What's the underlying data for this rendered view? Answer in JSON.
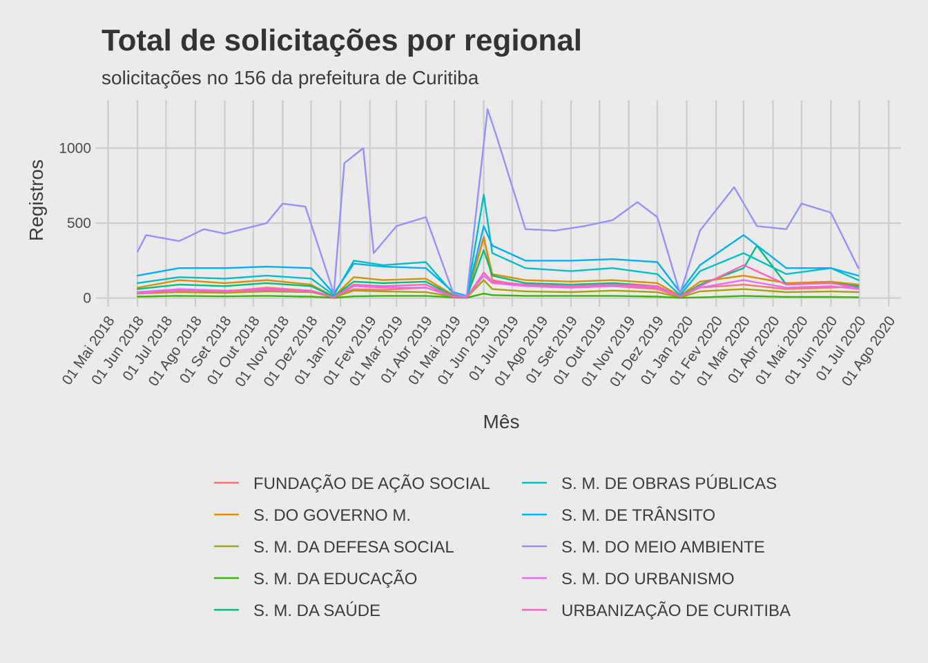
{
  "chart_data": {
    "type": "line",
    "title": "Total de solicitações por regional",
    "subtitle": "solicitações no 156 da prefeitura de Curitiba",
    "xlabel": "Mês",
    "ylabel": "Registros",
    "ylim": [
      -20,
      1320
    ],
    "y_ticks": [
      0,
      500,
      1000
    ],
    "xlim": [
      "2018-04-24",
      "2020-08-14"
    ],
    "x_ticks": [
      {
        "date": "2018-05-01",
        "label": "01 Mai 2018"
      },
      {
        "date": "2018-06-01",
        "label": "01 Jun 2018"
      },
      {
        "date": "2018-07-01",
        "label": "01 Jul 2018"
      },
      {
        "date": "2018-08-01",
        "label": "01 Ago 2018"
      },
      {
        "date": "2018-09-01",
        "label": "01 Set 2018"
      },
      {
        "date": "2018-10-01",
        "label": "01 Out 2018"
      },
      {
        "date": "2018-11-01",
        "label": "01 Nov 2018"
      },
      {
        "date": "2018-12-01",
        "label": "01 Dez 2018"
      },
      {
        "date": "2019-01-01",
        "label": "01 Jan 2019"
      },
      {
        "date": "2019-02-01",
        "label": "01 Fev 2019"
      },
      {
        "date": "2019-03-01",
        "label": "01 Mar 2019"
      },
      {
        "date": "2019-04-01",
        "label": "01 Abr 2019"
      },
      {
        "date": "2019-05-01",
        "label": "01 Mai 2019"
      },
      {
        "date": "2019-06-01",
        "label": "01 Jun 2019"
      },
      {
        "date": "2019-07-01",
        "label": "01 Jul 2019"
      },
      {
        "date": "2019-08-01",
        "label": "01 Ago 2019"
      },
      {
        "date": "2019-09-01",
        "label": "01 Set 2019"
      },
      {
        "date": "2019-10-01",
        "label": "01 Out 2019"
      },
      {
        "date": "2019-11-01",
        "label": "01 Nov 2019"
      },
      {
        "date": "2019-12-01",
        "label": "01 Dez 2019"
      },
      {
        "date": "2020-01-01",
        "label": "01 Jan 2020"
      },
      {
        "date": "2020-02-01",
        "label": "01 Fev 2020"
      },
      {
        "date": "2020-03-01",
        "label": "01 Mar 2020"
      },
      {
        "date": "2020-04-01",
        "label": "01 Abr 2020"
      },
      {
        "date": "2020-05-01",
        "label": "01 Mai 2020"
      },
      {
        "date": "2020-06-01",
        "label": "01 Jun 2020"
      },
      {
        "date": "2020-07-01",
        "label": "01 Jul 2020"
      },
      {
        "date": "2020-08-01",
        "label": "01 Ago 2020"
      }
    ],
    "grid": true,
    "legend_position": "bottom",
    "series": [
      {
        "name": "FUNDAÇÃO DE AÇÃO SOCIAL",
        "color": "#F8766D",
        "points": [
          [
            "2018-06-01",
            40
          ],
          [
            "2018-07-15",
            55
          ],
          [
            "2018-09-01",
            45
          ],
          [
            "2018-10-15",
            70
          ],
          [
            "2018-12-01",
            50
          ],
          [
            "2018-12-25",
            10
          ],
          [
            "2019-01-15",
            60
          ],
          [
            "2019-02-15",
            55
          ],
          [
            "2019-04-01",
            70
          ],
          [
            "2019-04-30",
            15
          ],
          [
            "2019-05-14",
            5
          ],
          [
            "2019-06-01",
            410
          ],
          [
            "2019-06-10",
            120
          ],
          [
            "2019-07-15",
            80
          ],
          [
            "2019-09-01",
            70
          ],
          [
            "2019-10-15",
            80
          ],
          [
            "2019-12-01",
            60
          ],
          [
            "2019-12-25",
            10
          ],
          [
            "2020-01-15",
            70
          ],
          [
            "2020-03-01",
            90
          ],
          [
            "2020-04-15",
            60
          ],
          [
            "2020-06-01",
            70
          ],
          [
            "2020-06-30",
            80
          ]
        ]
      },
      {
        "name": "S. DO GOVERNO M.",
        "color": "#D89000",
        "points": [
          [
            "2018-06-01",
            70
          ],
          [
            "2018-07-15",
            120
          ],
          [
            "2018-09-01",
            100
          ],
          [
            "2018-10-15",
            120
          ],
          [
            "2018-12-01",
            90
          ],
          [
            "2018-12-25",
            10
          ],
          [
            "2019-01-15",
            140
          ],
          [
            "2019-02-15",
            120
          ],
          [
            "2019-04-01",
            130
          ],
          [
            "2019-04-30",
            20
          ],
          [
            "2019-05-14",
            5
          ],
          [
            "2019-06-01",
            400
          ],
          [
            "2019-06-10",
            160
          ],
          [
            "2019-07-15",
            120
          ],
          [
            "2019-09-01",
            110
          ],
          [
            "2019-10-15",
            120
          ],
          [
            "2019-12-01",
            100
          ],
          [
            "2019-12-25",
            15
          ],
          [
            "2020-01-15",
            110
          ],
          [
            "2020-03-01",
            150
          ],
          [
            "2020-04-15",
            100
          ],
          [
            "2020-06-01",
            110
          ],
          [
            "2020-06-30",
            90
          ]
        ]
      },
      {
        "name": "S. M. DA DEFESA SOCIAL",
        "color": "#A3A500",
        "points": [
          [
            "2018-06-01",
            30
          ],
          [
            "2018-07-15",
            40
          ],
          [
            "2018-09-01",
            35
          ],
          [
            "2018-10-15",
            45
          ],
          [
            "2018-12-01",
            40
          ],
          [
            "2018-12-25",
            5
          ],
          [
            "2019-01-15",
            50
          ],
          [
            "2019-02-15",
            45
          ],
          [
            "2019-04-01",
            40
          ],
          [
            "2019-04-30",
            10
          ],
          [
            "2019-05-14",
            5
          ],
          [
            "2019-06-01",
            120
          ],
          [
            "2019-06-10",
            60
          ],
          [
            "2019-07-15",
            45
          ],
          [
            "2019-09-01",
            40
          ],
          [
            "2019-10-15",
            50
          ],
          [
            "2019-12-01",
            40
          ],
          [
            "2019-12-25",
            5
          ],
          [
            "2020-01-15",
            45
          ],
          [
            "2020-03-01",
            60
          ],
          [
            "2020-04-15",
            40
          ],
          [
            "2020-06-01",
            45
          ],
          [
            "2020-06-30",
            40
          ]
        ]
      },
      {
        "name": "S. M. DA EDUCAÇÃO",
        "color": "#39B600",
        "points": [
          [
            "2018-06-01",
            10
          ],
          [
            "2018-07-15",
            15
          ],
          [
            "2018-09-01",
            12
          ],
          [
            "2018-10-15",
            15
          ],
          [
            "2018-12-01",
            10
          ],
          [
            "2018-12-25",
            2
          ],
          [
            "2019-01-15",
            12
          ],
          [
            "2019-02-15",
            15
          ],
          [
            "2019-04-01",
            15
          ],
          [
            "2019-04-30",
            5
          ],
          [
            "2019-05-14",
            2
          ],
          [
            "2019-06-01",
            30
          ],
          [
            "2019-06-10",
            20
          ],
          [
            "2019-07-15",
            15
          ],
          [
            "2019-09-01",
            15
          ],
          [
            "2019-10-15",
            15
          ],
          [
            "2019-12-01",
            10
          ],
          [
            "2019-12-25",
            2
          ],
          [
            "2020-01-15",
            5
          ],
          [
            "2020-03-01",
            15
          ],
          [
            "2020-04-15",
            8
          ],
          [
            "2020-06-01",
            8
          ],
          [
            "2020-06-30",
            6
          ]
        ]
      },
      {
        "name": "S. M. DA SAÚDE",
        "color": "#00BF7D",
        "points": [
          [
            "2018-06-01",
            60
          ],
          [
            "2018-07-15",
            90
          ],
          [
            "2018-09-01",
            80
          ],
          [
            "2018-10-15",
            100
          ],
          [
            "2018-12-01",
            80
          ],
          [
            "2018-12-25",
            10
          ],
          [
            "2019-01-15",
            110
          ],
          [
            "2019-02-15",
            100
          ],
          [
            "2019-04-01",
            110
          ],
          [
            "2019-04-30",
            15
          ],
          [
            "2019-05-14",
            5
          ],
          [
            "2019-06-01",
            320
          ],
          [
            "2019-06-10",
            150
          ],
          [
            "2019-07-15",
            100
          ],
          [
            "2019-09-01",
            90
          ],
          [
            "2019-10-15",
            100
          ],
          [
            "2019-12-01",
            80
          ],
          [
            "2019-12-25",
            10
          ],
          [
            "2020-01-15",
            90
          ],
          [
            "2020-03-01",
            200
          ],
          [
            "2020-03-15",
            350
          ],
          [
            "2020-04-15",
            90
          ],
          [
            "2020-06-01",
            100
          ],
          [
            "2020-06-30",
            80
          ]
        ]
      },
      {
        "name": "S. M. DE OBRAS PÚBLICAS",
        "color": "#00BFC4",
        "points": [
          [
            "2018-06-01",
            100
          ],
          [
            "2018-07-15",
            140
          ],
          [
            "2018-09-01",
            130
          ],
          [
            "2018-10-15",
            150
          ],
          [
            "2018-12-01",
            130
          ],
          [
            "2018-12-25",
            20
          ],
          [
            "2019-01-15",
            250
          ],
          [
            "2019-02-15",
            220
          ],
          [
            "2019-04-01",
            240
          ],
          [
            "2019-04-30",
            30
          ],
          [
            "2019-05-14",
            10
          ],
          [
            "2019-06-01",
            690
          ],
          [
            "2019-06-10",
            300
          ],
          [
            "2019-07-15",
            200
          ],
          [
            "2019-09-01",
            180
          ],
          [
            "2019-10-15",
            200
          ],
          [
            "2019-12-01",
            160
          ],
          [
            "2019-12-25",
            20
          ],
          [
            "2020-01-15",
            180
          ],
          [
            "2020-03-01",
            300
          ],
          [
            "2020-04-15",
            160
          ],
          [
            "2020-06-01",
            200
          ],
          [
            "2020-06-30",
            120
          ]
        ]
      },
      {
        "name": "S. M. DE TRÂNSITO",
        "color": "#00B0F6",
        "points": [
          [
            "2018-06-01",
            150
          ],
          [
            "2018-07-15",
            200
          ],
          [
            "2018-09-01",
            200
          ],
          [
            "2018-10-15",
            210
          ],
          [
            "2018-12-01",
            200
          ],
          [
            "2018-12-25",
            30
          ],
          [
            "2019-01-15",
            230
          ],
          [
            "2019-02-15",
            210
          ],
          [
            "2019-04-01",
            200
          ],
          [
            "2019-04-30",
            40
          ],
          [
            "2019-05-14",
            15
          ],
          [
            "2019-06-01",
            480
          ],
          [
            "2019-06-10",
            350
          ],
          [
            "2019-07-15",
            250
          ],
          [
            "2019-09-01",
            250
          ],
          [
            "2019-10-15",
            260
          ],
          [
            "2019-12-01",
            240
          ],
          [
            "2019-12-25",
            40
          ],
          [
            "2020-01-15",
            220
          ],
          [
            "2020-03-01",
            420
          ],
          [
            "2020-04-15",
            200
          ],
          [
            "2020-06-01",
            200
          ],
          [
            "2020-06-30",
            150
          ]
        ]
      },
      {
        "name": "S. M. DO MEIO AMBIENTE",
        "color": "#9590FF",
        "points": [
          [
            "2018-06-01",
            310
          ],
          [
            "2018-06-10",
            420
          ],
          [
            "2018-07-15",
            380
          ],
          [
            "2018-08-10",
            460
          ],
          [
            "2018-09-01",
            430
          ],
          [
            "2018-10-15",
            500
          ],
          [
            "2018-11-01",
            630
          ],
          [
            "2018-11-25",
            610
          ],
          [
            "2018-12-25",
            30
          ],
          [
            "2019-01-05",
            900
          ],
          [
            "2019-01-25",
            1000
          ],
          [
            "2019-02-05",
            300
          ],
          [
            "2019-03-01",
            480
          ],
          [
            "2019-04-01",
            540
          ],
          [
            "2019-04-30",
            30
          ],
          [
            "2019-05-14",
            10
          ],
          [
            "2019-06-01",
            1030
          ],
          [
            "2019-06-05",
            1260
          ],
          [
            "2019-06-15",
            1070
          ],
          [
            "2019-07-15",
            460
          ],
          [
            "2019-08-15",
            450
          ],
          [
            "2019-09-15",
            480
          ],
          [
            "2019-10-15",
            520
          ],
          [
            "2019-11-10",
            640
          ],
          [
            "2019-12-01",
            540
          ],
          [
            "2019-12-25",
            30
          ],
          [
            "2020-01-15",
            450
          ],
          [
            "2020-02-20",
            740
          ],
          [
            "2020-03-15",
            480
          ],
          [
            "2020-04-15",
            460
          ],
          [
            "2020-05-01",
            630
          ],
          [
            "2020-06-01",
            570
          ],
          [
            "2020-06-30",
            200
          ]
        ]
      },
      {
        "name": "S. M. DO URBANISMO",
        "color": "#E76BF3",
        "points": [
          [
            "2018-06-01",
            40
          ],
          [
            "2018-07-15",
            60
          ],
          [
            "2018-09-01",
            50
          ],
          [
            "2018-10-15",
            60
          ],
          [
            "2018-12-01",
            50
          ],
          [
            "2018-12-25",
            5
          ],
          [
            "2019-01-15",
            80
          ],
          [
            "2019-02-15",
            70
          ],
          [
            "2019-04-01",
            70
          ],
          [
            "2019-04-30",
            10
          ],
          [
            "2019-05-14",
            5
          ],
          [
            "2019-06-01",
            150
          ],
          [
            "2019-06-10",
            100
          ],
          [
            "2019-07-15",
            80
          ],
          [
            "2019-09-01",
            70
          ],
          [
            "2019-10-15",
            80
          ],
          [
            "2019-12-01",
            70
          ],
          [
            "2019-12-25",
            10
          ],
          [
            "2020-01-15",
            70
          ],
          [
            "2020-03-01",
            120
          ],
          [
            "2020-04-15",
            70
          ],
          [
            "2020-06-01",
            80
          ],
          [
            "2020-06-30",
            60
          ]
        ]
      },
      {
        "name": "URBANIZAÇÃO DE CURITIBA",
        "color": "#FF62BC",
        "points": [
          [
            "2018-06-01",
            30
          ],
          [
            "2018-07-15",
            50
          ],
          [
            "2018-09-01",
            45
          ],
          [
            "2018-10-15",
            55
          ],
          [
            "2018-12-01",
            45
          ],
          [
            "2018-12-25",
            5
          ],
          [
            "2019-01-15",
            90
          ],
          [
            "2019-02-15",
            80
          ],
          [
            "2019-04-01",
            90
          ],
          [
            "2019-04-30",
            10
          ],
          [
            "2019-05-14",
            5
          ],
          [
            "2019-06-01",
            170
          ],
          [
            "2019-06-10",
            110
          ],
          [
            "2019-07-15",
            90
          ],
          [
            "2019-09-01",
            80
          ],
          [
            "2019-10-15",
            90
          ],
          [
            "2019-12-01",
            80
          ],
          [
            "2019-12-25",
            10
          ],
          [
            "2020-01-15",
            80
          ],
          [
            "2020-03-01",
            220
          ],
          [
            "2020-04-15",
            90
          ],
          [
            "2020-06-01",
            100
          ],
          [
            "2020-06-30",
            70
          ]
        ]
      }
    ]
  }
}
